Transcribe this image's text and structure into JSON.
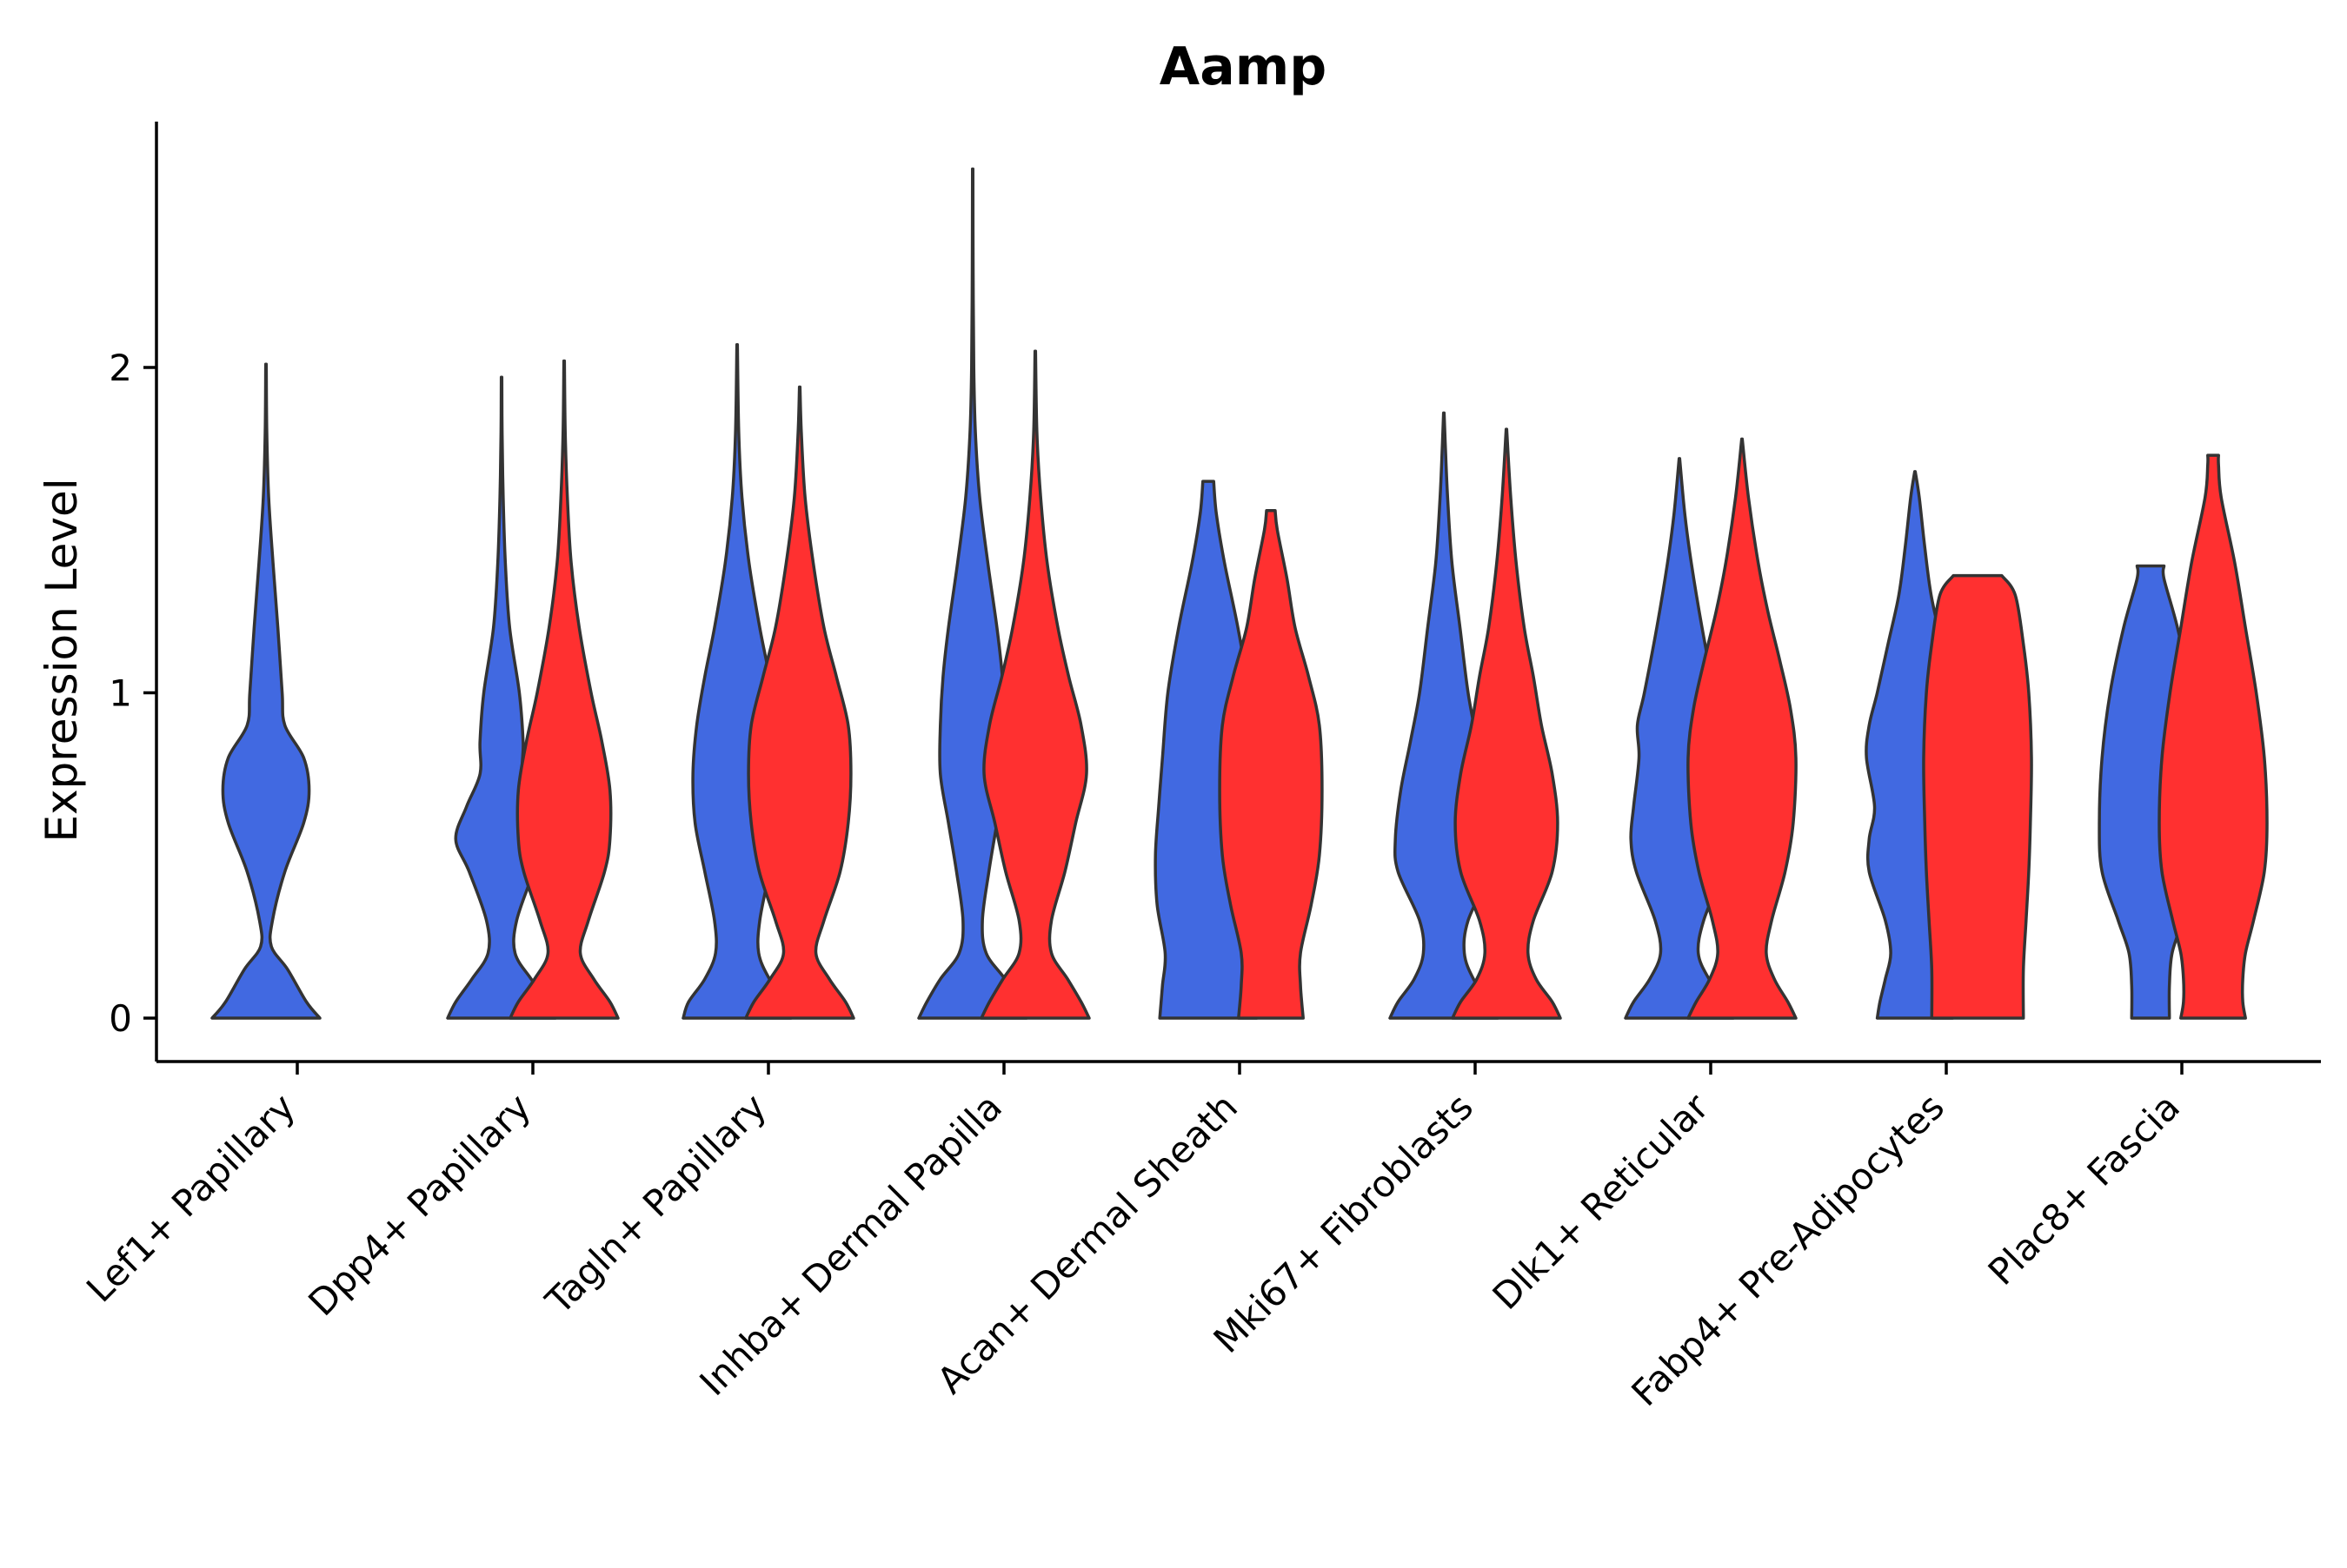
{
  "chart_data": {
    "type": "violin",
    "title": "Aamp",
    "xlabel": "",
    "ylabel": "Expression Level",
    "ylim": [
      -0.13,
      2.75
    ],
    "yticks": [
      0,
      1,
      2
    ],
    "grid": false,
    "legend": "none",
    "colors": {
      "group_a": "#4169E1",
      "group_b": "#FF3030",
      "outline": "#333333"
    },
    "categories": [
      "Lef1+ Papillary",
      "Dpp4+ Papillary",
      "Tagln+ Papillary",
      "Inhba+ Dermal Papilla",
      "Acan+ Dermal Sheath",
      "Mki67+ Fibroblasts",
      "Dlk1+ Reticular",
      "Fabp4+ Pre-Adipocytes",
      "Plac8+ Fascia"
    ],
    "violins": [
      {
        "category": "Lef1+ Papillary",
        "group": "a",
        "max": 2.01,
        "profile": [
          [
            0,
            1.0
          ],
          [
            0.05,
            0.75
          ],
          [
            0.15,
            0.4
          ],
          [
            0.22,
            0.1
          ],
          [
            0.3,
            0.12
          ],
          [
            0.45,
            0.35
          ],
          [
            0.6,
            0.7
          ],
          [
            0.7,
            0.8
          ],
          [
            0.8,
            0.7
          ],
          [
            0.9,
            0.35
          ],
          [
            1.0,
            0.3
          ],
          [
            1.2,
            0.22
          ],
          [
            1.4,
            0.13
          ],
          [
            1.6,
            0.05
          ],
          [
            1.8,
            0.015
          ],
          [
            2.01,
            0.005
          ]
        ]
      },
      {
        "category": "Dpp4+ Papillary",
        "group": "a",
        "max": 1.97,
        "profile": [
          [
            0,
            1.0
          ],
          [
            0.05,
            0.85
          ],
          [
            0.12,
            0.55
          ],
          [
            0.2,
            0.25
          ],
          [
            0.3,
            0.28
          ],
          [
            0.45,
            0.6
          ],
          [
            0.55,
            0.85
          ],
          [
            0.65,
            0.65
          ],
          [
            0.75,
            0.4
          ],
          [
            0.85,
            0.4
          ],
          [
            1.0,
            0.33
          ],
          [
            1.2,
            0.15
          ],
          [
            1.4,
            0.07
          ],
          [
            1.6,
            0.03
          ],
          [
            1.8,
            0.01
          ],
          [
            1.97,
            0.005
          ]
        ]
      },
      {
        "category": "Dpp4+ Papillary",
        "group": "b",
        "max": 2.02,
        "profile": [
          [
            0,
            1.0
          ],
          [
            0.05,
            0.85
          ],
          [
            0.12,
            0.55
          ],
          [
            0.2,
            0.3
          ],
          [
            0.3,
            0.45
          ],
          [
            0.45,
            0.75
          ],
          [
            0.55,
            0.85
          ],
          [
            0.7,
            0.85
          ],
          [
            0.85,
            0.7
          ],
          [
            1.0,
            0.5
          ],
          [
            1.2,
            0.28
          ],
          [
            1.4,
            0.13
          ],
          [
            1.6,
            0.06
          ],
          [
            1.8,
            0.02
          ],
          [
            2.02,
            0.005
          ]
        ]
      },
      {
        "category": "Tagln+ Papillary",
        "group": "a",
        "max": 2.07,
        "profile": [
          [
            0,
            1.0
          ],
          [
            0.05,
            0.9
          ],
          [
            0.12,
            0.6
          ],
          [
            0.2,
            0.4
          ],
          [
            0.3,
            0.42
          ],
          [
            0.45,
            0.6
          ],
          [
            0.6,
            0.78
          ],
          [
            0.75,
            0.82
          ],
          [
            0.9,
            0.75
          ],
          [
            1.05,
            0.6
          ],
          [
            1.2,
            0.42
          ],
          [
            1.4,
            0.22
          ],
          [
            1.6,
            0.09
          ],
          [
            1.8,
            0.03
          ],
          [
            2.07,
            0.005
          ]
        ]
      },
      {
        "category": "Tagln+ Papillary",
        "group": "b",
        "max": 1.94,
        "profile": [
          [
            0,
            1.0
          ],
          [
            0.05,
            0.85
          ],
          [
            0.12,
            0.55
          ],
          [
            0.2,
            0.3
          ],
          [
            0.3,
            0.45
          ],
          [
            0.45,
            0.75
          ],
          [
            0.6,
            0.9
          ],
          [
            0.75,
            0.95
          ],
          [
            0.9,
            0.9
          ],
          [
            1.05,
            0.68
          ],
          [
            1.2,
            0.45
          ],
          [
            1.4,
            0.25
          ],
          [
            1.6,
            0.1
          ],
          [
            1.8,
            0.03
          ],
          [
            1.94,
            0.005
          ]
        ]
      },
      {
        "category": "Inhba+ Dermal Papilla",
        "group": "a",
        "max": 2.61,
        "profile": [
          [
            0,
            1.0
          ],
          [
            0.05,
            0.85
          ],
          [
            0.12,
            0.6
          ],
          [
            0.2,
            0.25
          ],
          [
            0.3,
            0.18
          ],
          [
            0.45,
            0.3
          ],
          [
            0.6,
            0.45
          ],
          [
            0.75,
            0.6
          ],
          [
            0.9,
            0.6
          ],
          [
            1.05,
            0.55
          ],
          [
            1.2,
            0.45
          ],
          [
            1.4,
            0.28
          ],
          [
            1.6,
            0.13
          ],
          [
            1.8,
            0.05
          ],
          [
            2.0,
            0.02
          ],
          [
            2.3,
            0.008
          ],
          [
            2.61,
            0.004
          ]
        ]
      },
      {
        "category": "Inhba+ Dermal Papilla",
        "group": "b",
        "max": 2.05,
        "profile": [
          [
            0,
            1.0
          ],
          [
            0.05,
            0.85
          ],
          [
            0.12,
            0.6
          ],
          [
            0.2,
            0.3
          ],
          [
            0.3,
            0.3
          ],
          [
            0.45,
            0.55
          ],
          [
            0.6,
            0.75
          ],
          [
            0.75,
            0.95
          ],
          [
            0.9,
            0.85
          ],
          [
            1.05,
            0.62
          ],
          [
            1.2,
            0.42
          ],
          [
            1.4,
            0.22
          ],
          [
            1.6,
            0.1
          ],
          [
            1.8,
            0.03
          ],
          [
            2.05,
            0.005
          ]
        ]
      },
      {
        "category": "Acan+ Dermal Sheath",
        "group": "a",
        "max": 1.65,
        "profile": [
          [
            0,
            0.9
          ],
          [
            0.1,
            0.85
          ],
          [
            0.2,
            0.8
          ],
          [
            0.35,
            0.95
          ],
          [
            0.5,
            0.98
          ],
          [
            0.65,
            0.92
          ],
          [
            0.8,
            0.85
          ],
          [
            1.0,
            0.75
          ],
          [
            1.2,
            0.55
          ],
          [
            1.4,
            0.3
          ],
          [
            1.55,
            0.15
          ],
          [
            1.65,
            0.1
          ]
        ]
      },
      {
        "category": "Acan+ Dermal Sheath",
        "group": "b",
        "max": 1.56,
        "profile": [
          [
            0,
            0.6
          ],
          [
            0.1,
            0.55
          ],
          [
            0.2,
            0.55
          ],
          [
            0.35,
            0.75
          ],
          [
            0.5,
            0.9
          ],
          [
            0.7,
            0.95
          ],
          [
            0.9,
            0.9
          ],
          [
            1.05,
            0.7
          ],
          [
            1.2,
            0.45
          ],
          [
            1.35,
            0.3
          ],
          [
            1.5,
            0.12
          ],
          [
            1.56,
            0.08
          ]
        ]
      },
      {
        "category": "Mki67+ Fibroblasts",
        "group": "a",
        "max": 1.86,
        "profile": [
          [
            0,
            1.0
          ],
          [
            0.05,
            0.85
          ],
          [
            0.12,
            0.55
          ],
          [
            0.2,
            0.38
          ],
          [
            0.3,
            0.45
          ],
          [
            0.45,
            0.85
          ],
          [
            0.55,
            0.9
          ],
          [
            0.7,
            0.8
          ],
          [
            0.85,
            0.62
          ],
          [
            1.0,
            0.45
          ],
          [
            1.2,
            0.3
          ],
          [
            1.4,
            0.15
          ],
          [
            1.6,
            0.07
          ],
          [
            1.75,
            0.03
          ],
          [
            1.86,
            0.005
          ]
        ]
      },
      {
        "category": "Mki67+ Fibroblasts",
        "group": "b",
        "max": 1.81,
        "profile": [
          [
            0,
            1.0
          ],
          [
            0.05,
            0.85
          ],
          [
            0.12,
            0.55
          ],
          [
            0.2,
            0.4
          ],
          [
            0.3,
            0.5
          ],
          [
            0.45,
            0.85
          ],
          [
            0.6,
            0.95
          ],
          [
            0.75,
            0.85
          ],
          [
            0.9,
            0.65
          ],
          [
            1.05,
            0.5
          ],
          [
            1.2,
            0.33
          ],
          [
            1.4,
            0.18
          ],
          [
            1.6,
            0.08
          ],
          [
            1.81,
            0.005
          ]
        ]
      },
      {
        "category": "Dlk1+ Reticular",
        "group": "a",
        "max": 1.72,
        "profile": [
          [
            0,
            1.0
          ],
          [
            0.05,
            0.85
          ],
          [
            0.12,
            0.55
          ],
          [
            0.2,
            0.35
          ],
          [
            0.3,
            0.45
          ],
          [
            0.45,
            0.8
          ],
          [
            0.55,
            0.9
          ],
          [
            0.65,
            0.85
          ],
          [
            0.8,
            0.75
          ],
          [
            0.9,
            0.78
          ],
          [
            1.0,
            0.65
          ],
          [
            1.2,
            0.42
          ],
          [
            1.4,
            0.22
          ],
          [
            1.55,
            0.1
          ],
          [
            1.72,
            0.005
          ]
        ]
      },
      {
        "category": "Dlk1+ Reticular",
        "group": "b",
        "max": 1.78,
        "profile": [
          [
            0,
            1.0
          ],
          [
            0.05,
            0.85
          ],
          [
            0.12,
            0.6
          ],
          [
            0.2,
            0.45
          ],
          [
            0.3,
            0.55
          ],
          [
            0.45,
            0.8
          ],
          [
            0.6,
            0.95
          ],
          [
            0.8,
            1.0
          ],
          [
            0.95,
            0.9
          ],
          [
            1.1,
            0.7
          ],
          [
            1.25,
            0.48
          ],
          [
            1.4,
            0.3
          ],
          [
            1.6,
            0.12
          ],
          [
            1.78,
            0.005
          ]
        ]
      },
      {
        "category": "Fabp4+ Pre-Adipocytes",
        "group": "a",
        "max": 1.68,
        "profile": [
          [
            0,
            0.7
          ],
          [
            0.05,
            0.65
          ],
          [
            0.12,
            0.55
          ],
          [
            0.2,
            0.45
          ],
          [
            0.3,
            0.55
          ],
          [
            0.45,
            0.85
          ],
          [
            0.55,
            0.85
          ],
          [
            0.65,
            0.75
          ],
          [
            0.8,
            0.9
          ],
          [
            0.9,
            0.85
          ],
          [
            1.0,
            0.7
          ],
          [
            1.15,
            0.5
          ],
          [
            1.3,
            0.3
          ],
          [
            1.45,
            0.18
          ],
          [
            1.6,
            0.08
          ],
          [
            1.68,
            0.005
          ]
        ]
      },
      {
        "category": "Fabp4+ Pre-Adipocytes",
        "group": "b",
        "max": 1.36,
        "profile": [
          [
            0,
            0.85
          ],
          [
            0.15,
            0.85
          ],
          [
            0.3,
            0.9
          ],
          [
            0.45,
            0.95
          ],
          [
            0.6,
            0.98
          ],
          [
            0.8,
            1.0
          ],
          [
            1.0,
            0.95
          ],
          [
            1.15,
            0.85
          ],
          [
            1.3,
            0.7
          ],
          [
            1.36,
            0.45
          ]
        ]
      },
      {
        "category": "Plac8+ Fascia",
        "group": "a",
        "max": 1.39,
        "profile": [
          [
            0,
            0.35
          ],
          [
            0.1,
            0.35
          ],
          [
            0.2,
            0.4
          ],
          [
            0.3,
            0.6
          ],
          [
            0.45,
            0.9
          ],
          [
            0.6,
            0.95
          ],
          [
            0.8,
            0.9
          ],
          [
            1.0,
            0.75
          ],
          [
            1.2,
            0.5
          ],
          [
            1.35,
            0.25
          ],
          [
            1.39,
            0.25
          ]
        ]
      },
      {
        "category": "Plac8+ Fascia",
        "group": "b",
        "max": 1.73,
        "profile": [
          [
            0,
            0.6
          ],
          [
            0.05,
            0.55
          ],
          [
            0.12,
            0.55
          ],
          [
            0.2,
            0.6
          ],
          [
            0.3,
            0.75
          ],
          [
            0.45,
            0.95
          ],
          [
            0.6,
            1.0
          ],
          [
            0.8,
            0.95
          ],
          [
            1.0,
            0.8
          ],
          [
            1.2,
            0.6
          ],
          [
            1.4,
            0.4
          ],
          [
            1.6,
            0.15
          ],
          [
            1.7,
            0.1
          ],
          [
            1.73,
            0.1
          ]
        ]
      }
    ]
  }
}
